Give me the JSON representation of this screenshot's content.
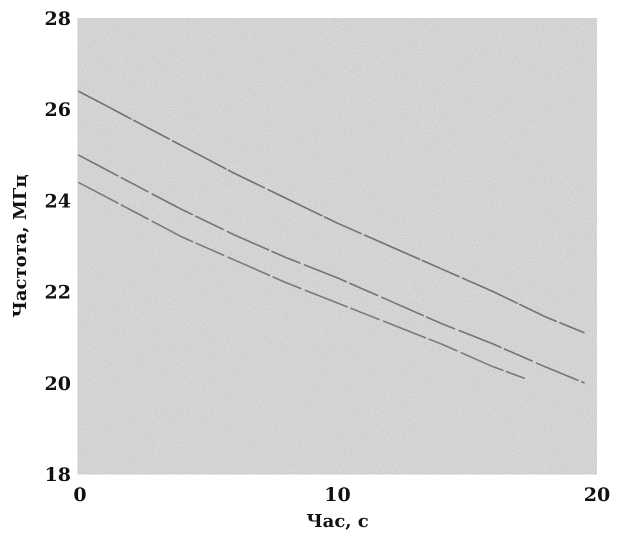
{
  "chart_data": {
    "type": "line",
    "title": "",
    "xlabel": "Час, с",
    "ylabel": "Частота, МГц",
    "xlim": [
      0,
      20
    ],
    "ylim": [
      18,
      28
    ],
    "x_ticks": [
      "0",
      "10",
      "20"
    ],
    "y_ticks": [
      "18",
      "20",
      "22",
      "24",
      "26",
      "28"
    ],
    "x_tick_values": [
      0,
      10,
      20
    ],
    "y_tick_values": [
      18,
      20,
      22,
      24,
      26,
      28
    ],
    "grid": false,
    "legend": "none",
    "background": "noisy-gray",
    "series": [
      {
        "color": "#666666",
        "x": [
          0,
          1,
          2,
          4,
          6,
          8,
          10,
          12,
          14,
          16,
          18,
          19.5
        ],
        "y": [
          26.4,
          26.1,
          25.8,
          25.2,
          24.6,
          24.05,
          23.5,
          23.0,
          22.5,
          22.0,
          21.45,
          21.1
        ]
      },
      {
        "color": "#6a6a6a",
        "x": [
          0,
          1,
          2,
          4,
          6,
          8,
          10,
          12,
          14,
          16,
          18,
          19.5
        ],
        "y": [
          25.0,
          24.7,
          24.4,
          23.8,
          23.25,
          22.75,
          22.3,
          21.8,
          21.3,
          20.85,
          20.35,
          20.0
        ]
      },
      {
        "color": "#707070",
        "x": [
          0,
          1,
          2,
          4,
          6,
          8,
          10,
          12,
          14,
          16,
          17.2
        ],
        "y": [
          24.4,
          24.1,
          23.8,
          23.2,
          22.7,
          22.2,
          21.75,
          21.3,
          20.85,
          20.35,
          20.1
        ]
      }
    ]
  }
}
